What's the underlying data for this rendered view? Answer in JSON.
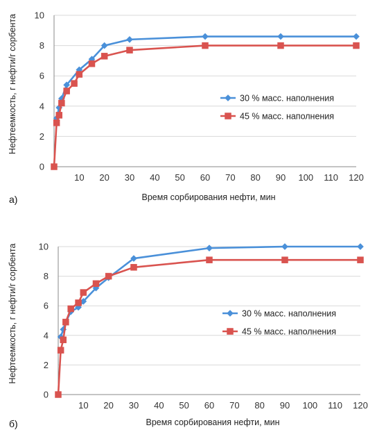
{
  "chart_data": [
    {
      "type": "line",
      "panel_label": "а)",
      "xlabel": "Время сорбирования нефти, мин",
      "ylabel": "Нефтеемкость, г нефти/г сорбента",
      "xlim": [
        0,
        120
      ],
      "ylim": [
        0,
        10
      ],
      "xticks": [
        10,
        20,
        30,
        40,
        50,
        60,
        70,
        80,
        90,
        100,
        110,
        120
      ],
      "yticks": [
        0,
        2,
        4,
        6,
        8,
        10
      ],
      "grid": "horizontal",
      "legend_position": "right",
      "series": [
        {
          "name": "30 % масс. наполнения",
          "color": "#4a90d9",
          "marker": "diamond",
          "x": [
            1,
            2,
            3,
            5,
            10,
            15,
            20,
            30,
            60,
            90,
            120
          ],
          "y": [
            3.2,
            3.9,
            4.5,
            5.4,
            6.4,
            7.1,
            8.0,
            8.4,
            8.6,
            8.6,
            8.6
          ]
        },
        {
          "name": "45 % масс. наполнения",
          "color": "#d9534f",
          "marker": "square",
          "x": [
            0,
            1,
            2,
            3,
            5,
            8,
            10,
            15,
            20,
            30,
            60,
            90,
            120
          ],
          "y": [
            0,
            2.9,
            3.4,
            4.2,
            5.0,
            5.5,
            6.1,
            6.8,
            7.3,
            7.7,
            8.0,
            8.0,
            8.0
          ]
        }
      ]
    },
    {
      "type": "line",
      "panel_label": "б)",
      "xlabel": "Время сорбирования нефти, мин",
      "ylabel": "Нефтеемкость, г нефти/г сорбента",
      "xlim": [
        0,
        120
      ],
      "ylim": [
        0,
        10
      ],
      "xticks": [
        10,
        20,
        30,
        40,
        50,
        60,
        70,
        80,
        90,
        100,
        110,
        120
      ],
      "yticks": [
        0,
        2,
        4,
        6,
        8,
        10
      ],
      "grid": "horizontal",
      "legend_position": "right",
      "series": [
        {
          "name": "30 % масс. наполнения",
          "color": "#4a90d9",
          "marker": "diamond",
          "x": [
            1,
            2,
            3,
            5,
            8,
            10,
            15,
            20,
            30,
            60,
            90,
            120
          ],
          "y": [
            3.9,
            4.4,
            4.9,
            5.6,
            5.9,
            6.3,
            7.2,
            7.9,
            9.2,
            9.9,
            10.0,
            10.0
          ]
        },
        {
          "name": "45 % масс. наполнения",
          "color": "#d9534f",
          "marker": "square",
          "x": [
            0,
            1,
            2,
            3,
            5,
            8,
            10,
            15,
            20,
            30,
            60,
            90,
            120
          ],
          "y": [
            0,
            3.0,
            3.7,
            4.9,
            5.8,
            6.2,
            6.9,
            7.5,
            8.0,
            8.6,
            9.1,
            9.1,
            9.1
          ]
        }
      ]
    }
  ]
}
